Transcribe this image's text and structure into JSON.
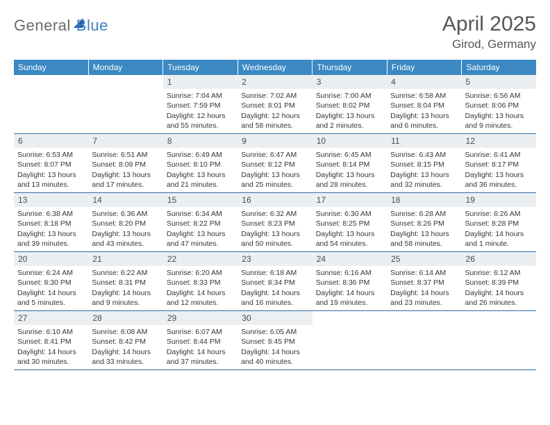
{
  "brand": {
    "part1": "General",
    "part2": "Blue"
  },
  "title": "April 2025",
  "location": "Girod, Germany",
  "colors": {
    "header_bg": "#3b88c3",
    "header_text": "#ffffff",
    "daynum_bg": "#eceff1",
    "row_divider": "#2f6aa3",
    "text": "#3a3a3a",
    "brand_gray": "#6a6a6a",
    "brand_blue": "#3b7fc4"
  },
  "day_names": [
    "Sunday",
    "Monday",
    "Tuesday",
    "Wednesday",
    "Thursday",
    "Friday",
    "Saturday"
  ],
  "weeks": [
    [
      {
        "empty": true
      },
      {
        "empty": true
      },
      {
        "n": "1",
        "sr": "Sunrise: 7:04 AM",
        "ss": "Sunset: 7:59 PM",
        "dl": "Daylight: 12 hours and 55 minutes."
      },
      {
        "n": "2",
        "sr": "Sunrise: 7:02 AM",
        "ss": "Sunset: 8:01 PM",
        "dl": "Daylight: 12 hours and 58 minutes."
      },
      {
        "n": "3",
        "sr": "Sunrise: 7:00 AM",
        "ss": "Sunset: 8:02 PM",
        "dl": "Daylight: 13 hours and 2 minutes."
      },
      {
        "n": "4",
        "sr": "Sunrise: 6:58 AM",
        "ss": "Sunset: 8:04 PM",
        "dl": "Daylight: 13 hours and 6 minutes."
      },
      {
        "n": "5",
        "sr": "Sunrise: 6:56 AM",
        "ss": "Sunset: 8:06 PM",
        "dl": "Daylight: 13 hours and 9 minutes."
      }
    ],
    [
      {
        "n": "6",
        "sr": "Sunrise: 6:53 AM",
        "ss": "Sunset: 8:07 PM",
        "dl": "Daylight: 13 hours and 13 minutes."
      },
      {
        "n": "7",
        "sr": "Sunrise: 6:51 AM",
        "ss": "Sunset: 8:09 PM",
        "dl": "Daylight: 13 hours and 17 minutes."
      },
      {
        "n": "8",
        "sr": "Sunrise: 6:49 AM",
        "ss": "Sunset: 8:10 PM",
        "dl": "Daylight: 13 hours and 21 minutes."
      },
      {
        "n": "9",
        "sr": "Sunrise: 6:47 AM",
        "ss": "Sunset: 8:12 PM",
        "dl": "Daylight: 13 hours and 25 minutes."
      },
      {
        "n": "10",
        "sr": "Sunrise: 6:45 AM",
        "ss": "Sunset: 8:14 PM",
        "dl": "Daylight: 13 hours and 28 minutes."
      },
      {
        "n": "11",
        "sr": "Sunrise: 6:43 AM",
        "ss": "Sunset: 8:15 PM",
        "dl": "Daylight: 13 hours and 32 minutes."
      },
      {
        "n": "12",
        "sr": "Sunrise: 6:41 AM",
        "ss": "Sunset: 8:17 PM",
        "dl": "Daylight: 13 hours and 36 minutes."
      }
    ],
    [
      {
        "n": "13",
        "sr": "Sunrise: 6:38 AM",
        "ss": "Sunset: 8:18 PM",
        "dl": "Daylight: 13 hours and 39 minutes."
      },
      {
        "n": "14",
        "sr": "Sunrise: 6:36 AM",
        "ss": "Sunset: 8:20 PM",
        "dl": "Daylight: 13 hours and 43 minutes."
      },
      {
        "n": "15",
        "sr": "Sunrise: 6:34 AM",
        "ss": "Sunset: 8:22 PM",
        "dl": "Daylight: 13 hours and 47 minutes."
      },
      {
        "n": "16",
        "sr": "Sunrise: 6:32 AM",
        "ss": "Sunset: 8:23 PM",
        "dl": "Daylight: 13 hours and 50 minutes."
      },
      {
        "n": "17",
        "sr": "Sunrise: 6:30 AM",
        "ss": "Sunset: 8:25 PM",
        "dl": "Daylight: 13 hours and 54 minutes."
      },
      {
        "n": "18",
        "sr": "Sunrise: 6:28 AM",
        "ss": "Sunset: 8:26 PM",
        "dl": "Daylight: 13 hours and 58 minutes."
      },
      {
        "n": "19",
        "sr": "Sunrise: 6:26 AM",
        "ss": "Sunset: 8:28 PM",
        "dl": "Daylight: 14 hours and 1 minute."
      }
    ],
    [
      {
        "n": "20",
        "sr": "Sunrise: 6:24 AM",
        "ss": "Sunset: 8:30 PM",
        "dl": "Daylight: 14 hours and 5 minutes."
      },
      {
        "n": "21",
        "sr": "Sunrise: 6:22 AM",
        "ss": "Sunset: 8:31 PM",
        "dl": "Daylight: 14 hours and 9 minutes."
      },
      {
        "n": "22",
        "sr": "Sunrise: 6:20 AM",
        "ss": "Sunset: 8:33 PM",
        "dl": "Daylight: 14 hours and 12 minutes."
      },
      {
        "n": "23",
        "sr": "Sunrise: 6:18 AM",
        "ss": "Sunset: 8:34 PM",
        "dl": "Daylight: 14 hours and 16 minutes."
      },
      {
        "n": "24",
        "sr": "Sunrise: 6:16 AM",
        "ss": "Sunset: 8:36 PM",
        "dl": "Daylight: 14 hours and 19 minutes."
      },
      {
        "n": "25",
        "sr": "Sunrise: 6:14 AM",
        "ss": "Sunset: 8:37 PM",
        "dl": "Daylight: 14 hours and 23 minutes."
      },
      {
        "n": "26",
        "sr": "Sunrise: 6:12 AM",
        "ss": "Sunset: 8:39 PM",
        "dl": "Daylight: 14 hours and 26 minutes."
      }
    ],
    [
      {
        "n": "27",
        "sr": "Sunrise: 6:10 AM",
        "ss": "Sunset: 8:41 PM",
        "dl": "Daylight: 14 hours and 30 minutes."
      },
      {
        "n": "28",
        "sr": "Sunrise: 6:08 AM",
        "ss": "Sunset: 8:42 PM",
        "dl": "Daylight: 14 hours and 33 minutes."
      },
      {
        "n": "29",
        "sr": "Sunrise: 6:07 AM",
        "ss": "Sunset: 8:44 PM",
        "dl": "Daylight: 14 hours and 37 minutes."
      },
      {
        "n": "30",
        "sr": "Sunrise: 6:05 AM",
        "ss": "Sunset: 8:45 PM",
        "dl": "Daylight: 14 hours and 40 minutes."
      },
      {
        "empty": true
      },
      {
        "empty": true
      },
      {
        "empty": true
      }
    ]
  ]
}
